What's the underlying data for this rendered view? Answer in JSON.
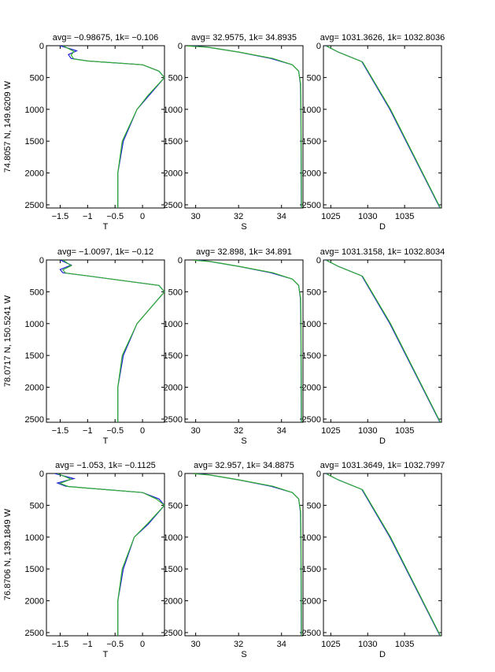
{
  "colors": {
    "series_a": "#1f1fd6",
    "series_b": "#33b033",
    "axis": "#000000"
  },
  "row_labels": [
    "74.8057 N, 149.6209 W",
    "78.0717 N, 150.5241 W",
    "76.8706 N, 139.1849 W"
  ],
  "chart_data": [
    {
      "type": "line",
      "row": 0,
      "col": 0,
      "title": "avg= −0.98675, 1k= −0.106",
      "xlabel": "T",
      "xlim": [
        -1.75,
        0.4
      ],
      "ylim": [
        0,
        2550
      ],
      "y_reversed": true,
      "xticks": [
        -1.5,
        -1,
        -0.5,
        0
      ],
      "xtick_labels": [
        "−1.5",
        "−1",
        "−0.5",
        "0"
      ],
      "yticks": [
        0,
        500,
        1000,
        1500,
        2000,
        2500
      ],
      "ytick_labels": [
        "0",
        "500",
        "1000",
        "1500",
        "2000",
        "2500"
      ],
      "series": [
        {
          "color": "#1f1fd6",
          "points": [
            [
              -1.5,
              0
            ],
            [
              -1.2,
              80
            ],
            [
              -1.35,
              140
            ],
            [
              -1.3,
              200
            ],
            [
              -1.0,
              240
            ],
            [
              0.0,
              300
            ],
            [
              0.3,
              400
            ],
            [
              0.4,
              500
            ],
            [
              0.1,
              800
            ],
            [
              -0.1,
              1000
            ],
            [
              -0.35,
              1500
            ],
            [
              -0.45,
              2000
            ],
            [
              -0.45,
              2550
            ]
          ]
        },
        {
          "color": "#33b033",
          "points": [
            [
              -1.45,
              0
            ],
            [
              -1.25,
              90
            ],
            [
              -1.3,
              150
            ],
            [
              -1.25,
              210
            ],
            [
              -1.0,
              240
            ],
            [
              0.0,
              300
            ],
            [
              0.3,
              400
            ],
            [
              0.4,
              500
            ],
            [
              0.1,
              780
            ],
            [
              -0.1,
              1000
            ],
            [
              -0.37,
              1500
            ],
            [
              -0.45,
              2000
            ],
            [
              -0.45,
              2550
            ]
          ]
        }
      ]
    },
    {
      "type": "line",
      "row": 0,
      "col": 1,
      "title": "avg= 32.9575, 1k= 34.8935",
      "xlabel": "S",
      "xlim": [
        29.5,
        35.0
      ],
      "ylim": [
        0,
        2550
      ],
      "y_reversed": true,
      "xticks": [
        30,
        32,
        34
      ],
      "xtick_labels": [
        "30",
        "32",
        "34"
      ],
      "yticks": [
        0,
        500,
        1000,
        1500,
        2000,
        2500
      ],
      "ytick_labels": [
        "0",
        "500",
        "1000",
        "1500",
        "2000",
        "2500"
      ],
      "series": [
        {
          "color": "#1f1fd6",
          "points": [
            [
              29.6,
              0
            ],
            [
              30.5,
              20
            ],
            [
              32.0,
              100
            ],
            [
              33.5,
              200
            ],
            [
              34.5,
              300
            ],
            [
              34.8,
              400
            ],
            [
              34.88,
              600
            ],
            [
              34.9,
              1000
            ],
            [
              34.92,
              2550
            ]
          ]
        },
        {
          "color": "#33b033",
          "points": [
            [
              29.6,
              5
            ],
            [
              30.6,
              25
            ],
            [
              32.1,
              105
            ],
            [
              33.6,
              200
            ],
            [
              34.5,
              300
            ],
            [
              34.8,
              400
            ],
            [
              34.89,
              600
            ],
            [
              34.91,
              1000
            ],
            [
              34.93,
              2550
            ]
          ]
        }
      ]
    },
    {
      "type": "line",
      "row": 0,
      "col": 2,
      "title": "avg= 1031.3626, 1k= 1032.8036",
      "xlabel": "D",
      "xlim": [
        1024,
        1040
      ],
      "ylim": [
        0,
        2550
      ],
      "y_reversed": true,
      "xticks": [
        1025,
        1030,
        1035
      ],
      "xtick_labels": [
        "1025",
        "1030",
        "1035"
      ],
      "yticks": [
        0,
        500,
        1000,
        1500,
        2000,
        2500
      ],
      "ytick_labels": [
        "0",
        "500",
        "1000",
        "1500",
        "2000",
        "2500"
      ],
      "series": [
        {
          "color": "#1f1fd6",
          "points": [
            [
              1024.3,
              0
            ],
            [
              1026.0,
              100
            ],
            [
              1029.2,
              250
            ],
            [
              1033.0,
              1000
            ],
            [
              1039.8,
              2550
            ]
          ]
        },
        {
          "color": "#33b033",
          "points": [
            [
              1024.4,
              5
            ],
            [
              1026.1,
              105
            ],
            [
              1029.3,
              255
            ],
            [
              1033.1,
              1000
            ],
            [
              1039.85,
              2550
            ]
          ]
        }
      ]
    },
    {
      "type": "line",
      "row": 1,
      "col": 0,
      "title": "avg= −1.0097, 1k= −0.12",
      "xlabel": "T",
      "xlim": [
        -1.75,
        0.4
      ],
      "ylim": [
        0,
        2550
      ],
      "y_reversed": true,
      "xticks": [
        -1.5,
        -1,
        -0.5,
        0
      ],
      "xtick_labels": [
        "−1.5",
        "−1",
        "−0.5",
        "0"
      ],
      "yticks": [
        0,
        500,
        1000,
        1500,
        2000,
        2500
      ],
      "ytick_labels": [
        "0",
        "500",
        "1000",
        "1500",
        "2000",
        "2500"
      ],
      "series": [
        {
          "color": "#1f1fd6",
          "points": [
            [
              -1.5,
              0
            ],
            [
              -1.3,
              80
            ],
            [
              -1.5,
              150
            ],
            [
              -1.45,
              200
            ],
            [
              -1.0,
              250
            ],
            [
              0.3,
              400
            ],
            [
              0.4,
              500
            ],
            [
              0.1,
              800
            ],
            [
              -0.1,
              1000
            ],
            [
              -0.35,
              1500
            ],
            [
              -0.45,
              2000
            ],
            [
              -0.45,
              2550
            ]
          ]
        },
        {
          "color": "#33b033",
          "points": [
            [
              -1.45,
              0
            ],
            [
              -1.3,
              90
            ],
            [
              -1.45,
              155
            ],
            [
              -1.4,
              205
            ],
            [
              -1.0,
              250
            ],
            [
              0.3,
              400
            ],
            [
              0.4,
              500
            ],
            [
              0.1,
              800
            ],
            [
              -0.1,
              1000
            ],
            [
              -0.37,
              1500
            ],
            [
              -0.45,
              2000
            ],
            [
              -0.45,
              2550
            ]
          ]
        }
      ]
    },
    {
      "type": "line",
      "row": 1,
      "col": 1,
      "title": "avg= 32.898, 1k= 34.891",
      "xlabel": "S",
      "xlim": [
        29.5,
        35.0
      ],
      "ylim": [
        0,
        2550
      ],
      "y_reversed": true,
      "xticks": [
        30,
        32,
        34
      ],
      "xtick_labels": [
        "30",
        "32",
        "34"
      ],
      "yticks": [
        0,
        500,
        1000,
        1500,
        2000,
        2500
      ],
      "ytick_labels": [
        "0",
        "500",
        "1000",
        "1500",
        "2000",
        "2500"
      ],
      "series": [
        {
          "color": "#1f1fd6",
          "points": [
            [
              30.0,
              0
            ],
            [
              30.6,
              20
            ],
            [
              32.0,
              100
            ],
            [
              33.5,
              200
            ],
            [
              34.5,
              300
            ],
            [
              34.8,
              400
            ],
            [
              34.88,
              600
            ],
            [
              34.9,
              1000
            ],
            [
              34.92,
              2550
            ]
          ]
        },
        {
          "color": "#33b033",
          "points": [
            [
              29.9,
              5
            ],
            [
              30.7,
              25
            ],
            [
              32.1,
              105
            ],
            [
              33.6,
              200
            ],
            [
              34.5,
              300
            ],
            [
              34.8,
              400
            ],
            [
              34.89,
              600
            ],
            [
              34.91,
              1000
            ],
            [
              34.93,
              2550
            ]
          ]
        }
      ]
    },
    {
      "type": "line",
      "row": 1,
      "col": 2,
      "title": "avg= 1031.3158, 1k= 1032.8034",
      "xlabel": "D",
      "xlim": [
        1024,
        1040
      ],
      "ylim": [
        0,
        2550
      ],
      "y_reversed": true,
      "xticks": [
        1025,
        1030,
        1035
      ],
      "xtick_labels": [
        "1025",
        "1030",
        "1035"
      ],
      "yticks": [
        0,
        500,
        1000,
        1500,
        2000,
        2500
      ],
      "ytick_labels": [
        "0",
        "500",
        "1000",
        "1500",
        "2000",
        "2500"
      ],
      "series": [
        {
          "color": "#1f1fd6",
          "points": [
            [
              1024.3,
              0
            ],
            [
              1026.0,
              100
            ],
            [
              1029.2,
              250
            ],
            [
              1033.0,
              1000
            ],
            [
              1039.8,
              2550
            ]
          ]
        },
        {
          "color": "#33b033",
          "points": [
            [
              1024.4,
              5
            ],
            [
              1026.1,
              105
            ],
            [
              1029.3,
              255
            ],
            [
              1033.1,
              1000
            ],
            [
              1039.85,
              2550
            ]
          ]
        }
      ]
    },
    {
      "type": "line",
      "row": 2,
      "col": 0,
      "title": "avg= −1.053, 1k= −0.1125",
      "xlabel": "T",
      "xlim": [
        -1.75,
        0.4
      ],
      "ylim": [
        0,
        2550
      ],
      "y_reversed": true,
      "xticks": [
        -1.5,
        -1,
        -0.5,
        0
      ],
      "xtick_labels": [
        "−1.5",
        "−1",
        "−0.5",
        "0"
      ],
      "yticks": [
        0,
        500,
        1000,
        1500,
        2000,
        2500
      ],
      "ytick_labels": [
        "0",
        "500",
        "1000",
        "1500",
        "2000",
        "2500"
      ],
      "series": [
        {
          "color": "#1f1fd6",
          "points": [
            [
              -1.6,
              0
            ],
            [
              -1.25,
              80
            ],
            [
              -1.55,
              150
            ],
            [
              -1.4,
              200
            ],
            [
              -1.0,
              230
            ],
            [
              0.0,
              300
            ],
            [
              0.3,
              400
            ],
            [
              0.4,
              500
            ],
            [
              0.1,
              800
            ],
            [
              -0.15,
              1000
            ],
            [
              -0.35,
              1500
            ],
            [
              -0.45,
              2000
            ],
            [
              -0.45,
              2550
            ]
          ]
        },
        {
          "color": "#33b033",
          "points": [
            [
              -1.55,
              0
            ],
            [
              -1.3,
              90
            ],
            [
              -1.5,
              155
            ],
            [
              -1.35,
              205
            ],
            [
              -1.0,
              230
            ],
            [
              0.0,
              300
            ],
            [
              0.25,
              400
            ],
            [
              0.4,
              500
            ],
            [
              0.1,
              780
            ],
            [
              -0.15,
              1000
            ],
            [
              -0.37,
              1500
            ],
            [
              -0.45,
              2000
            ],
            [
              -0.45,
              2550
            ]
          ]
        }
      ]
    },
    {
      "type": "line",
      "row": 2,
      "col": 1,
      "title": "avg= 32.957, 1k= 34.8875",
      "xlabel": "S",
      "xlim": [
        29.5,
        35.0
      ],
      "ylim": [
        0,
        2550
      ],
      "y_reversed": true,
      "xticks": [
        30,
        32,
        34
      ],
      "xtick_labels": [
        "30",
        "32",
        "34"
      ],
      "yticks": [
        0,
        500,
        1000,
        1500,
        2000,
        2500
      ],
      "ytick_labels": [
        "0",
        "500",
        "1000",
        "1500",
        "2000",
        "2500"
      ],
      "series": [
        {
          "color": "#1f1fd6",
          "points": [
            [
              30.0,
              0
            ],
            [
              30.6,
              20
            ],
            [
              32.0,
              100
            ],
            [
              33.5,
              200
            ],
            [
              34.5,
              300
            ],
            [
              34.8,
              400
            ],
            [
              34.88,
              600
            ],
            [
              34.9,
              1000
            ],
            [
              34.92,
              2550
            ]
          ]
        },
        {
          "color": "#33b033",
          "points": [
            [
              29.9,
              5
            ],
            [
              30.7,
              25
            ],
            [
              32.1,
              105
            ],
            [
              33.6,
              200
            ],
            [
              34.5,
              300
            ],
            [
              34.8,
              400
            ],
            [
              34.89,
              600
            ],
            [
              34.91,
              1000
            ],
            [
              34.93,
              2550
            ]
          ]
        }
      ]
    },
    {
      "type": "line",
      "row": 2,
      "col": 2,
      "title": "avg= 1031.3649, 1k= 1032.7997",
      "xlabel": "D",
      "xlim": [
        1024,
        1040
      ],
      "ylim": [
        0,
        2550
      ],
      "y_reversed": true,
      "xticks": [
        1025,
        1030,
        1035
      ],
      "xtick_labels": [
        "1025",
        "1030",
        "1035"
      ],
      "yticks": [
        0,
        500,
        1000,
        1500,
        2000,
        2500
      ],
      "ytick_labels": [
        "0",
        "500",
        "1000",
        "1500",
        "2000",
        "2500"
      ],
      "series": [
        {
          "color": "#1f1fd6",
          "points": [
            [
              1024.3,
              0
            ],
            [
              1026.0,
              100
            ],
            [
              1029.2,
              250
            ],
            [
              1033.0,
              1000
            ],
            [
              1039.8,
              2550
            ]
          ]
        },
        {
          "color": "#33b033",
          "points": [
            [
              1024.4,
              5
            ],
            [
              1026.1,
              105
            ],
            [
              1029.3,
              255
            ],
            [
              1033.1,
              1000
            ],
            [
              1039.85,
              2550
            ]
          ]
        }
      ]
    }
  ]
}
